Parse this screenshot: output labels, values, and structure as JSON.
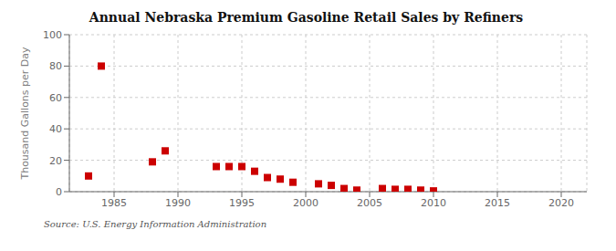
{
  "chart_data": {
    "type": "scatter",
    "title": "Annual Nebraska Premium Gasoline Retail Sales by Refiners",
    "y_label": "Thousand Gallons per Day",
    "annotations": [
      "Source: U.S. Energy Information Administration"
    ],
    "x": [
      1983,
      1984,
      1988,
      1989,
      1993,
      1994,
      1995,
      1996,
      1997,
      1998,
      1999,
      2001,
      2002,
      2003,
      2004,
      2006,
      2007,
      2008,
      2009,
      2010
    ],
    "values": [
      10,
      80,
      19,
      26,
      16,
      16,
      16,
      13,
      9,
      8,
      6,
      5,
      4,
      2,
      1,
      2,
      1.5,
      1.5,
      1,
      0.5
    ],
    "color": "#cc0000",
    "marker": "square",
    "xlim": [
      1981.5,
      2022
    ],
    "xticks": [
      1985,
      1990,
      1995,
      2000,
      2005,
      2010,
      2015,
      2020
    ],
    "ylim": [
      0,
      100
    ],
    "yticks": [
      0,
      20,
      40,
      60,
      80,
      100
    ],
    "grid": true
  }
}
